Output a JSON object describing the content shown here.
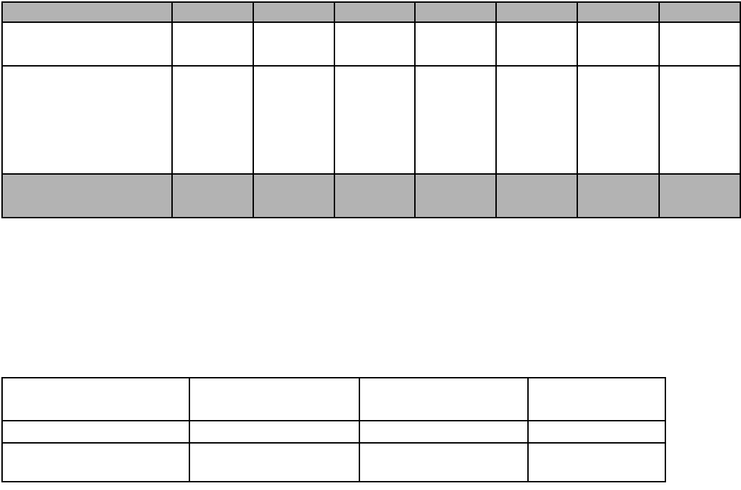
{
  "page": {
    "background": "#ffffff"
  },
  "colors": {
    "shaded_row": "#b3b3b3",
    "cell_background": "#ffffff",
    "border": "#000000"
  },
  "table1": {
    "columns": 8,
    "rows": [
      {
        "type": "shaded",
        "cells": [
          "",
          "",
          "",
          "",
          "",
          "",
          "",
          ""
        ]
      },
      {
        "type": "plain",
        "cells": [
          "",
          "",
          "",
          "",
          "",
          "",
          "",
          ""
        ]
      },
      {
        "type": "plain",
        "cells": [
          "",
          "",
          "",
          "",
          "",
          "",
          "",
          ""
        ]
      },
      {
        "type": "shaded",
        "cells": [
          "",
          "",
          "",
          "",
          "",
          "",
          "",
          ""
        ]
      }
    ]
  },
  "table2": {
    "columns": 4,
    "rows": [
      {
        "type": "plain",
        "cells": [
          "",
          "",
          "",
          ""
        ]
      },
      {
        "type": "plain",
        "cells": [
          "",
          "",
          "",
          ""
        ]
      },
      {
        "type": "plain",
        "cells": [
          "",
          "",
          "",
          ""
        ]
      }
    ]
  }
}
